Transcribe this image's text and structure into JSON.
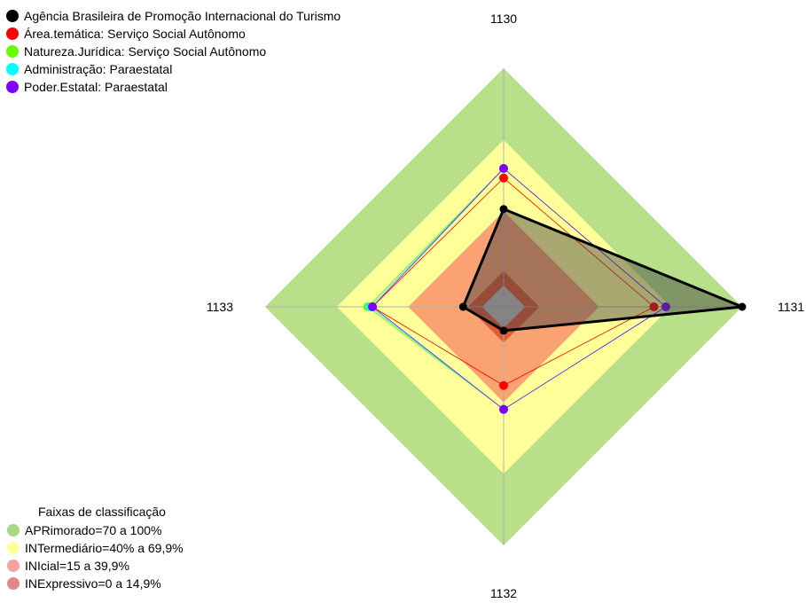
{
  "chart_data": {
    "type": "radar",
    "title": "",
    "axes": [
      "1130",
      "1131",
      "1132",
      "1133"
    ],
    "rmax": 100,
    "bands": {
      "title": "Faixas de classificação",
      "items": [
        {
          "label": "APRimorado=70 a 100%",
          "from": 70,
          "to": 100,
          "color": "#b8e08a",
          "legend_color": "#a8d882"
        },
        {
          "label": "INTermediário=40% a 69,9%",
          "from": 40,
          "to": 70,
          "color": "#ffff99",
          "legend_color": "#ffff99"
        },
        {
          "label": "INIcial=15 a 39,9%",
          "from": 15,
          "to": 40,
          "color": "#fba273",
          "legend_color": "#f9a0a0"
        },
        {
          "label": "INExpressivo=0 a 14,9%",
          "from": 0,
          "to": 15,
          "color": "#e05a37",
          "legend_color": "#e08888"
        }
      ]
    },
    "series": [
      {
        "name": "Agência Brasileira de Promoção Internacional  do Turismo",
        "color": "#000000",
        "values": [
          41,
          100,
          10,
          17
        ],
        "filled": true
      },
      {
        "name": "Área.temática: Serviço Social Autônomo",
        "color": "#ff0000",
        "values": [
          54,
          63,
          33,
          55
        ],
        "filled": false
      },
      {
        "name": "Natureza.Jurídica: Serviço Social Autônomo",
        "color": "#66ff00",
        "values": [
          58,
          68,
          43,
          57
        ],
        "filled": false
      },
      {
        "name": "Administração: Paraestatal",
        "color": "#00ffff",
        "values": [
          58,
          68,
          43,
          56
        ],
        "filled": false
      },
      {
        "name": "Poder.Estatal: Paraestatal",
        "color": "#8000ff",
        "values": [
          58,
          68,
          43,
          55
        ],
        "filled": false
      }
    ]
  }
}
